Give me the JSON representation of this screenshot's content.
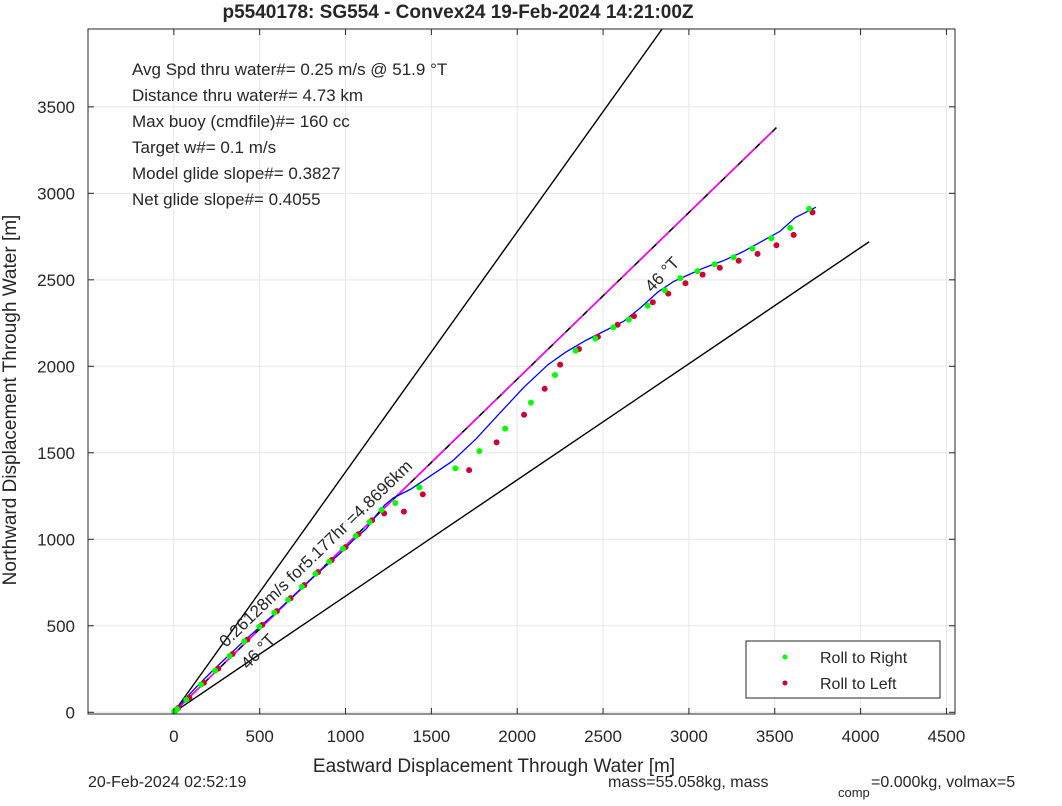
{
  "title": "p5540178: SG554 - Convex24 19-Feb-2024 14:21:00Z",
  "xlabel": "Eastward Displacement Through Water [m]",
  "ylabel": "Northward Displacement Through Water [m]",
  "footer": {
    "date": "20-Feb-2024 02:52:19",
    "mass_prefix": "mass=55.058kg, mass",
    "mass_sub": "comp",
    "mass_suffix": "=0.000kg, volmax=5"
  },
  "stats": [
    "Avg Spd thru water#=  0.25 m/s @  51.9        °T",
    "Distance thru water#=  4.73 km",
    "Max buoy (cmdfile)#= 160 cc",
    "Target w#= 0.1 m/s",
    "Model glide slope#= 0.3827",
    "Net glide slope#= 0.4055"
  ],
  "annotations": {
    "heading_upper": "46 °T",
    "heading_lower": "46 °T",
    "speed_line": "0.26128m/s for5.177hr =4.8696km"
  },
  "legend": {
    "items": [
      {
        "label": "Roll to Right",
        "color": "#00ff00"
      },
      {
        "label": "Roll to Left",
        "color": "#cc0033"
      }
    ],
    "position": "bottom-right"
  },
  "colors": {
    "track": "#0000ff",
    "speed_line": "#ff00ff",
    "heading_lines": "#000000",
    "grid": "#e6e6e6"
  },
  "chart_data": {
    "type": "line",
    "xlim": [
      -500,
      4550
    ],
    "ylim": [
      -10,
      3950
    ],
    "x_ticks": [
      0,
      500,
      1000,
      1500,
      2000,
      2500,
      3000,
      3500,
      4000,
      4500
    ],
    "y_ticks": [
      0,
      500,
      1000,
      1500,
      2000,
      2500,
      3000,
      3500
    ],
    "grid": true,
    "series": [
      {
        "name": "heading bound upper",
        "style": "black line",
        "x": [
          0,
          2880
        ],
        "y": [
          0,
          4000
        ]
      },
      {
        "name": "heading bound lower",
        "style": "black line",
        "x": [
          0,
          4050
        ],
        "y": [
          0,
          2720
        ]
      },
      {
        "name": "net speed line",
        "style": "magenta dashed",
        "x": [
          0,
          3510
        ],
        "y": [
          0,
          3380
        ]
      },
      {
        "name": "track",
        "style": "blue line",
        "x": [
          0,
          50,
          130,
          215,
          300,
          390,
          480,
          570,
          650,
          730,
          810,
          890,
          970,
          1040,
          1120,
          1180,
          1230,
          1280,
          1380,
          1500,
          1620,
          1760,
          1890,
          2040,
          2180,
          2280,
          2400,
          2520,
          2620,
          2720,
          2820,
          2910,
          3000,
          3090,
          3200,
          3310,
          3420,
          3530,
          3620,
          3740
        ],
        "y": [
          0,
          60,
          145,
          230,
          310,
          395,
          475,
          555,
          630,
          705,
          780,
          850,
          920,
          990,
          1060,
          1140,
          1200,
          1240,
          1290,
          1370,
          1450,
          1580,
          1720,
          1880,
          2010,
          2080,
          2150,
          2210,
          2260,
          2340,
          2430,
          2490,
          2530,
          2570,
          2610,
          2660,
          2720,
          2780,
          2860,
          2920
        ]
      },
      {
        "name": "Roll to Right",
        "x": [
          2,
          18,
          72,
          158,
          240,
          325,
          410,
          498,
          585,
          665,
          745,
          825,
          905,
          985,
          1060,
          1140,
          1210,
          1290,
          1430,
          1640,
          1780,
          1930,
          2080,
          2220,
          2340,
          2455,
          2560,
          2650,
          2760,
          2860,
          2950,
          3050,
          3150,
          3260,
          3370,
          3480,
          3590,
          3700
        ],
        "y": [
          2,
          18,
          72,
          160,
          240,
          325,
          410,
          495,
          575,
          650,
          725,
          800,
          870,
          945,
          1020,
          1100,
          1170,
          1210,
          1300,
          1410,
          1510,
          1640,
          1790,
          1950,
          2090,
          2160,
          2225,
          2270,
          2350,
          2440,
          2510,
          2550,
          2590,
          2630,
          2680,
          2740,
          2800,
          2910
        ]
      },
      {
        "name": "Roll to Left",
        "x": [
          5,
          25,
          90,
          175,
          258,
          342,
          428,
          515,
          600,
          680,
          760,
          840,
          920,
          1000,
          1075,
          1155,
          1225,
          1340,
          1450,
          1720,
          1880,
          2040,
          2160,
          2250,
          2360,
          2470,
          2585,
          2680,
          2790,
          2880,
          2980,
          3080,
          3180,
          3290,
          3400,
          3510,
          3610,
          3720
        ],
        "y": [
          5,
          25,
          85,
          170,
          252,
          337,
          420,
          505,
          585,
          660,
          735,
          810,
          880,
          955,
          1030,
          1110,
          1150,
          1160,
          1260,
          1400,
          1560,
          1720,
          1870,
          2010,
          2100,
          2170,
          2240,
          2290,
          2370,
          2420,
          2480,
          2530,
          2570,
          2610,
          2650,
          2700,
          2760,
          2890
        ]
      }
    ]
  }
}
